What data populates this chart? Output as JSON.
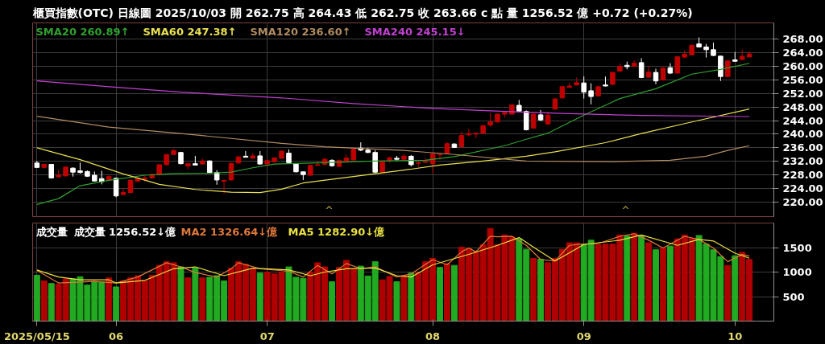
{
  "chart_data": [
    {
      "type": "candlestick",
      "title": "櫃買指數(OTC)  日線圖  2025/10/03  開 262.75  高 264.43  低 262.75  收 263.66 c 點  量 1256.52 億  +0.72 (+0.27%)",
      "categories": [
        "2025/05/15",
        null,
        null,
        null,
        null,
        null,
        null,
        null,
        null,
        null,
        null,
        "06",
        null,
        null,
        null,
        null,
        null,
        null,
        null,
        null,
        null,
        null,
        null,
        null,
        null,
        null,
        null,
        null,
        null,
        null,
        null,
        null,
        "07",
        null,
        null,
        null,
        null,
        null,
        null,
        null,
        null,
        null,
        null,
        null,
        null,
        null,
        null,
        null,
        null,
        null,
        null,
        null,
        null,
        null,
        null,
        "08",
        null,
        null,
        null,
        null,
        null,
        null,
        null,
        null,
        null,
        null,
        null,
        null,
        null,
        null,
        null,
        null,
        null,
        null,
        null,
        null,
        "09",
        null,
        null,
        null,
        null,
        null,
        null,
        null,
        null,
        null,
        null,
        null,
        null,
        null,
        null,
        null,
        null,
        null,
        null,
        null,
        null,
        "10",
        null,
        null
      ],
      "ohlc": [
        [
          231.5,
          232.1,
          230.1,
          230.2
        ],
        [
          230.2,
          231.3,
          230.0,
          231.1
        ],
        [
          231.1,
          231.2,
          226.9,
          227.1
        ],
        [
          227.4,
          229.5,
          227.3,
          227.9
        ],
        [
          227.7,
          230.5,
          227.5,
          230.3
        ],
        [
          230.0,
          230.2,
          227.5,
          228.8
        ],
        [
          229.2,
          231.6,
          228.4,
          228.7
        ],
        [
          229.0,
          229.3,
          227.4,
          227.6
        ],
        [
          227.9,
          229.0,
          226.0,
          226.2
        ],
        [
          226.9,
          229.2,
          225.2,
          226.0
        ],
        [
          226.4,
          227.9,
          226.3,
          227.5
        ],
        [
          227.0,
          227.1,
          221.4,
          221.8
        ],
        [
          222.2,
          224.0,
          222.0,
          222.8
        ],
        [
          222.8,
          226.8,
          222.6,
          226.4
        ],
        [
          226.1,
          227.2,
          226.0,
          227.0
        ],
        [
          226.7,
          227.7,
          226.1,
          227.1
        ],
        [
          227.1,
          228.5,
          227.0,
          228.1
        ],
        [
          228.0,
          231.1,
          227.8,
          231.0
        ],
        [
          231.0,
          234.1,
          230.8,
          234.0
        ],
        [
          234.0,
          235.6,
          233.8,
          235.2
        ],
        [
          234.6,
          234.8,
          231.1,
          231.3
        ],
        [
          230.6,
          231.5,
          229.6,
          231.3
        ],
        [
          231.3,
          233.6,
          230.8,
          230.9
        ],
        [
          231.2,
          232.8,
          231.0,
          232.1
        ],
        [
          232.1,
          232.3,
          228.3,
          228.5
        ],
        [
          228.7,
          229.4,
          225.1,
          226.5
        ],
        [
          226.1,
          226.5,
          222.4,
          226.4
        ],
        [
          226.5,
          231.6,
          226.3,
          231.4
        ],
        [
          231.5,
          233.6,
          231.3,
          233.3
        ],
        [
          233.5,
          235.0,
          233.1,
          233.2
        ],
        [
          232.9,
          234.4,
          232.8,
          233.6
        ],
        [
          233.6,
          235.0,
          231.0,
          231.2
        ],
        [
          231.2,
          232.5,
          230.9,
          232.2
        ],
        [
          231.9,
          233.2,
          231.7,
          233.0
        ],
        [
          232.9,
          235.2,
          232.7,
          235.0
        ],
        [
          234.4,
          235.5,
          231.4,
          231.6
        ],
        [
          231.3,
          231.5,
          228.7,
          228.9
        ],
        [
          228.9,
          229.0,
          226.5,
          228.1
        ],
        [
          227.9,
          231.0,
          227.7,
          230.8
        ],
        [
          230.8,
          232.1,
          230.7,
          231.0
        ],
        [
          231.1,
          233.0,
          230.8,
          232.6
        ],
        [
          232.3,
          232.6,
          230.4,
          230.7
        ],
        [
          230.5,
          232.5,
          230.3,
          232.3
        ],
        [
          232.0,
          234.1,
          231.8,
          233.0
        ],
        [
          232.4,
          235.7,
          232.2,
          235.6
        ],
        [
          235.9,
          237.6,
          235.0,
          235.3
        ],
        [
          235.3,
          236.0,
          234.4,
          234.6
        ],
        [
          234.6,
          235.3,
          228.5,
          228.8
        ],
        [
          228.8,
          232.2,
          228.5,
          232.0
        ],
        [
          232.3,
          233.4,
          231.6,
          233.0
        ],
        [
          232.9,
          233.6,
          232.1,
          232.6
        ],
        [
          232.6,
          234.2,
          232.4,
          233.5
        ],
        [
          233.5,
          233.8,
          230.5,
          231.0
        ],
        [
          231.4,
          231.9,
          230.3,
          231.6
        ],
        [
          231.7,
          232.9,
          231.5,
          232.0
        ],
        [
          231.3,
          234.6,
          228.3,
          234.2
        ],
        [
          233.9,
          234.3,
          232.4,
          234.1
        ],
        [
          234.3,
          237.5,
          234.1,
          237.2
        ],
        [
          237.1,
          237.3,
          236.0,
          236.1
        ],
        [
          236.3,
          240.8,
          236.1,
          239.6
        ],
        [
          239.8,
          241.5,
          239.4,
          240.2
        ],
        [
          240.0,
          240.5,
          238.8,
          240.3
        ],
        [
          240.3,
          242.8,
          240.0,
          242.5
        ],
        [
          242.7,
          246.3,
          242.2,
          243.6
        ],
        [
          243.6,
          246.1,
          243.4,
          245.9
        ],
        [
          245.9,
          246.6,
          245.0,
          246.4
        ],
        [
          245.9,
          248.9,
          245.7,
          248.6
        ],
        [
          248.5,
          250.1,
          246.6,
          246.8
        ],
        [
          246.7,
          247.0,
          241.1,
          241.3
        ],
        [
          241.8,
          246.3,
          241.6,
          245.9
        ],
        [
          245.7,
          247.1,
          243.9,
          244.2
        ],
        [
          243.0,
          246.6,
          242.8,
          245.6
        ],
        [
          247.4,
          250.7,
          247.2,
          250.4
        ],
        [
          250.7,
          254.2,
          250.5,
          254.0
        ],
        [
          253.8,
          255.1,
          253.7,
          254.2
        ],
        [
          254.5,
          256.7,
          254.3,
          255.2
        ],
        [
          255.1,
          257.0,
          250.5,
          252.4
        ],
        [
          252.8,
          255.0,
          248.8,
          251.1
        ],
        [
          251.3,
          254.3,
          251.1,
          254.0
        ],
        [
          254.5,
          257.0,
          254.1,
          254.2
        ],
        [
          254.7,
          258.4,
          254.5,
          258.2
        ],
        [
          258.6,
          260.9,
          258.5,
          260.0
        ],
        [
          260.3,
          261.4,
          259.1,
          259.9
        ],
        [
          260.0,
          261.8,
          259.9,
          260.9
        ],
        [
          261.1,
          262.4,
          256.5,
          256.7
        ],
        [
          256.8,
          260.1,
          256.6,
          258.3
        ],
        [
          258.2,
          259.3,
          254.7,
          255.7
        ],
        [
          256.0,
          259.7,
          255.8,
          259.5
        ],
        [
          259.6,
          260.9,
          257.7,
          258.0
        ],
        [
          258.0,
          263.0,
          257.8,
          262.8
        ],
        [
          262.7,
          264.7,
          262.5,
          263.6
        ],
        [
          263.4,
          266.4,
          263.2,
          266.2
        ],
        [
          266.6,
          268.5,
          265.6,
          265.7
        ],
        [
          265.7,
          266.6,
          262.6,
          264.9
        ],
        [
          264.9,
          267.0,
          263.0,
          263.2
        ],
        [
          263.0,
          263.1,
          255.7,
          257.0
        ],
        [
          257.0,
          261.8,
          256.8,
          261.6
        ],
        [
          261.9,
          264.2,
          261.4,
          261.5
        ],
        [
          262.0,
          264.9,
          261.9,
          262.94
        ],
        [
          262.75,
          264.43,
          262.75,
          263.66
        ]
      ],
      "colors": [
        "#ffffff",
        "#c00000",
        "#ffffff",
        "#c00000",
        "#c00000",
        "#ffffff",
        "#ffffff",
        "#ffffff",
        "#ffffff",
        "#ffffff",
        "#c00000",
        "#ffffff",
        "#c00000",
        "#c00000",
        "#c00000",
        "#c00000",
        "#c00000",
        "#c00000",
        "#c00000",
        "#c00000",
        "#ffffff",
        "#c00000",
        "#ffffff",
        "#c00000",
        "#ffffff",
        "#ffffff",
        "#c00000",
        "#c00000",
        "#c00000",
        "#ffffff",
        "#c00000",
        "#ffffff",
        "#c00000",
        "#c00000",
        "#c00000",
        "#ffffff",
        "#ffffff",
        "#ffffff",
        "#c00000",
        "#c00000",
        "#c00000",
        "#ffffff",
        "#c00000",
        "#c00000",
        "#c00000",
        "#ffffff",
        "#ffffff",
        "#ffffff",
        "#c00000",
        "#c00000",
        "#ffffff",
        "#c00000",
        "#ffffff",
        "#c00000",
        "#c00000",
        "#c00000",
        "#c00000",
        "#c00000",
        "#ffffff",
        "#c00000",
        "#c00000",
        "#c00000",
        "#c00000",
        "#c00000",
        "#c00000",
        "#c00000",
        "#c00000",
        "#ffffff",
        "#ffffff",
        "#c00000",
        "#ffffff",
        "#c00000",
        "#c00000",
        "#c00000",
        "#c00000",
        "#c00000",
        "#ffffff",
        "#ffffff",
        "#c00000",
        "#ffffff",
        "#c00000",
        "#c00000",
        "#ffffff",
        "#c00000",
        "#ffffff",
        "#c00000",
        "#ffffff",
        "#c00000",
        "#ffffff",
        "#c00000",
        "#c00000",
        "#c00000",
        "#ffffff",
        "#ffffff",
        "#ffffff",
        "#ffffff",
        "#c00000",
        "#ffffff",
        "#c00000",
        "#c00000"
      ],
      "series": [
        {
          "name": "SMA20 260.89↑",
          "type": "line",
          "color": "#2fa02f",
          "values": [
            219.3,
            null,
            null,
            221.0,
            null,
            null,
            224.8,
            null,
            null,
            null,
            226.4,
            null,
            null,
            null,
            null,
            227.9,
            null,
            null,
            null,
            228.4,
            null,
            null,
            null,
            null,
            228.5,
            null,
            null,
            228.8,
            null,
            null,
            230.1,
            null,
            null,
            231.2,
            null,
            null,
            null,
            null,
            null,
            null,
            231.6,
            null,
            null,
            null,
            null,
            null,
            null,
            232.1,
            null,
            null,
            null,
            null,
            null,
            null,
            232.3,
            null,
            null,
            null,
            233.4,
            null,
            null,
            null,
            null,
            null,
            null,
            236.6,
            null,
            null,
            238.5,
            null,
            null,
            240.3,
            null,
            null,
            null,
            null,
            245.6,
            null,
            null,
            null,
            null,
            250.5,
            null,
            null,
            null,
            null,
            253.4,
            null,
            null,
            null,
            null,
            257.7,
            null,
            null,
            null,
            259.1,
            null,
            null,
            null,
            260.9
          ]
        },
        {
          "name": "SMA60 247.38↑",
          "type": "line",
          "color": "#e8e050",
          "values": [
            236.0,
            null,
            null,
            null,
            null,
            null,
            232.5,
            null,
            null,
            null,
            null,
            null,
            228.3,
            null,
            null,
            null,
            null,
            225.2,
            null,
            null,
            null,
            null,
            223.7,
            null,
            null,
            null,
            null,
            222.9,
            null,
            null,
            null,
            222.8,
            null,
            null,
            223.8,
            null,
            null,
            225.6,
            null,
            null,
            null,
            null,
            null,
            null,
            227.5,
            null,
            null,
            null,
            null,
            null,
            null,
            229.4,
            null,
            null,
            null,
            null,
            230.9,
            null,
            null,
            null,
            null,
            null,
            232.1,
            null,
            null,
            null,
            null,
            null,
            233.5,
            null,
            null,
            null,
            234.8,
            null,
            null,
            null,
            null,
            null,
            null,
            237.5,
            null,
            null,
            null,
            null,
            240.2,
            null,
            null,
            null,
            null,
            null,
            null,
            243.6,
            null,
            null,
            null,
            null,
            null,
            null,
            null,
            247.4
          ]
        },
        {
          "name": "SMA120 236.60↑",
          "type": "line",
          "color": "#b08c60",
          "values": [
            245.3,
            null,
            null,
            null,
            null,
            null,
            null,
            null,
            null,
            null,
            242.1,
            null,
            null,
            null,
            null,
            null,
            null,
            null,
            null,
            null,
            240.2,
            null,
            null,
            null,
            null,
            null,
            null,
            null,
            null,
            null,
            null,
            null,
            null,
            null,
            237.3,
            null,
            null,
            null,
            null,
            null,
            236.3,
            null,
            null,
            null,
            null,
            null,
            null,
            null,
            null,
            null,
            null,
            235.2,
            null,
            null,
            null,
            null,
            null,
            null,
            234.0,
            null,
            null,
            null,
            null,
            null,
            null,
            null,
            null,
            null,
            232.1,
            null,
            null,
            null,
            232.0,
            null,
            null,
            null,
            null,
            null,
            null,
            null,
            231.9,
            null,
            null,
            null,
            null,
            null,
            null,
            null,
            232.3,
            null,
            null,
            null,
            null,
            233.5,
            null,
            null,
            235.2,
            null,
            null,
            236.6
          ]
        },
        {
          "name": "SMA240 245.15↓",
          "type": "line",
          "color": "#c040d0",
          "values": [
            255.7,
            null,
            null,
            null,
            null,
            null,
            null,
            null,
            null,
            null,
            254.0,
            null,
            null,
            null,
            null,
            null,
            null,
            null,
            null,
            null,
            252.4,
            null,
            null,
            null,
            null,
            null,
            null,
            null,
            null,
            null,
            null,
            null,
            null,
            null,
            250.7,
            null,
            null,
            null,
            null,
            null,
            null,
            null,
            null,
            null,
            249.0,
            null,
            null,
            null,
            null,
            null,
            null,
            null,
            null,
            null,
            null,
            247.6,
            null,
            null,
            null,
            null,
            null,
            null,
            null,
            null,
            null,
            246.7,
            null,
            null,
            null,
            null,
            null,
            null,
            null,
            246.1,
            null,
            null,
            null,
            null,
            null,
            null,
            null,
            null,
            null,
            null,
            245.5,
            null,
            null,
            null,
            null,
            null,
            null,
            null,
            null,
            null,
            null,
            null,
            null,
            null,
            null,
            245.2
          ]
        }
      ],
      "annotations": [
        "^",
        "^"
      ],
      "ylim": [
        215.7,
        272.8
      ],
      "yticks": [
        {
          "value": 220,
          "label": "220.00"
        },
        {
          "value": 224,
          "label": "224.00"
        },
        {
          "value": 228,
          "label": "228.00"
        },
        {
          "value": 232,
          "label": "232.00"
        },
        {
          "value": 236,
          "label": "236.00"
        },
        {
          "value": 240,
          "label": "240.00"
        },
        {
          "value": 244,
          "label": "244.00"
        },
        {
          "value": 248,
          "label": "248.00"
        },
        {
          "value": 252,
          "label": "252.00"
        },
        {
          "value": 256,
          "label": "256.00"
        },
        {
          "value": 260,
          "label": "260.00"
        },
        {
          "value": 264,
          "label": "264.00"
        },
        {
          "value": 268,
          "label": "268.00"
        }
      ],
      "tick_labels": "y",
      "grid": true,
      "legend": "top left"
    },
    {
      "type": "bar",
      "ylabel": "成交量",
      "categories": [
        "2025/05/15",
        null,
        null,
        null,
        null,
        null,
        null,
        null,
        null,
        null,
        null,
        "06",
        null,
        null,
        null,
        null,
        null,
        null,
        null,
        null,
        null,
        null,
        null,
        null,
        null,
        null,
        null,
        null,
        null,
        null,
        null,
        null,
        "07",
        null,
        null,
        null,
        null,
        null,
        null,
        null,
        null,
        null,
        null,
        null,
        null,
        null,
        null,
        null,
        null,
        null,
        null,
        null,
        null,
        null,
        null,
        "08",
        null,
        null,
        null,
        null,
        null,
        null,
        null,
        null,
        null,
        null,
        null,
        null,
        null,
        null,
        null,
        null,
        null,
        null,
        null,
        null,
        "09",
        null,
        null,
        null,
        null,
        null,
        null,
        null,
        null,
        null,
        null,
        null,
        null,
        null,
        null,
        null,
        null,
        null,
        null,
        null,
        null,
        "10",
        null,
        null
      ],
      "series": [
        {
          "name": "成交量 1256.52↓億",
          "type": "bar",
          "values": [
            936,
            820,
            767,
            751,
            862,
            862,
            905,
            735,
            804,
            799,
            883,
            698,
            820,
            883,
            926,
            831,
            936,
            1137,
            1211,
            1190,
            1106,
            883,
            1084,
            883,
            894,
            926,
            820,
            1079,
            1211,
            1159,
            1069,
            979,
            1000,
            963,
            1000,
            1106,
            894,
            873,
            1000,
            1190,
            1106,
            804,
            1095,
            1238,
            1069,
            1121,
            920,
            1211,
            841,
            910,
            804,
            926,
            979,
            989,
            1211,
            1280,
            1095,
            1174,
            1137,
            1508,
            1481,
            1423,
            1561,
            1889,
            1561,
            1756,
            1719,
            1677,
            1465,
            1280,
            1264,
            1190,
            1280,
            1465,
            1598,
            1598,
            1571,
            1650,
            1561,
            1571,
            1571,
            1756,
            1740,
            1793,
            1740,
            1598,
            1455,
            1492,
            1529,
            1677,
            1756,
            1688,
            1746,
            1571,
            1455,
            1317,
            1137,
            1333,
            1402,
            1256.52
          ],
          "colors": [
            "#22aa22",
            "#b00000",
            "#22aa22",
            "#b00000",
            "#b00000",
            "#22aa22",
            "#22aa22",
            "#22aa22",
            "#22aa22",
            "#22aa22",
            "#b00000",
            "#22aa22",
            "#b00000",
            "#b00000",
            "#b00000",
            "#b00000",
            "#b00000",
            "#b00000",
            "#b00000",
            "#b00000",
            "#22aa22",
            "#b00000",
            "#22aa22",
            "#b00000",
            "#22aa22",
            "#22aa22",
            "#22aa22",
            "#b00000",
            "#b00000",
            "#b00000",
            "#b00000",
            "#22aa22",
            "#b00000",
            "#b00000",
            "#b00000",
            "#22aa22",
            "#22aa22",
            "#22aa22",
            "#b00000",
            "#b00000",
            "#b00000",
            "#22aa22",
            "#b00000",
            "#b00000",
            "#b00000",
            "#22aa22",
            "#22aa22",
            "#22aa22",
            "#b00000",
            "#b00000",
            "#22aa22",
            "#b00000",
            "#22aa22",
            "#b00000",
            "#b00000",
            "#b00000",
            "#22aa22",
            "#b00000",
            "#22aa22",
            "#b00000",
            "#b00000",
            "#b00000",
            "#b00000",
            "#b00000",
            "#b00000",
            "#b00000",
            "#b00000",
            "#22aa22",
            "#22aa22",
            "#b00000",
            "#22aa22",
            "#b00000",
            "#b00000",
            "#b00000",
            "#b00000",
            "#b00000",
            "#22aa22",
            "#22aa22",
            "#b00000",
            "#b00000",
            "#b00000",
            "#b00000",
            "#22aa22",
            "#b00000",
            "#22aa22",
            "#b00000",
            "#22aa22",
            "#b00000",
            "#22aa22",
            "#b00000",
            "#b00000",
            "#b00000",
            "#22aa22",
            "#22aa22",
            "#22aa22",
            "#22aa22",
            "#b00000",
            "#22aa22",
            "#b00000",
            "#b00000"
          ]
        },
        {
          "name": "MA2 1326.64↓億",
          "type": "line",
          "color": "#e07838",
          "values": [
            1032,
            null,
            null,
            778,
            null,
            null,
            null,
            null,
            809,
            null,
            null,
            778,
            null,
            null,
            899,
            null,
            null,
            null,
            1190,
            null,
            1106,
            null,
            989,
            null,
            null,
            899,
            null,
            1069,
            1190,
            null,
            null,
            1069,
            null,
            null,
            null,
            1016,
            null,
            899,
            null,
            1137,
            null,
            963,
            null,
            1174,
            null,
            1069,
            null,
            1106,
            null,
            null,
            899,
            null,
            963,
            null,
            null,
            1254,
            null,
            1148,
            null,
            1412,
            1492,
            1412,
            null,
            1730,
            1719,
            null,
            1730,
            null,
            1545,
            null,
            1254,
            null,
            1227,
            null,
            1545,
            null,
            1571,
            null,
            1582,
            null,
            null,
            1730,
            null,
            1783,
            null,
            1650,
            null,
            1492,
            null,
            null,
            1730,
            null,
            1666,
            null,
            1492,
            null,
            1211,
            null,
            1360,
            1327
          ]
        },
        {
          "name": "MA5 1282.90↓億",
          "type": "line",
          "color": "#e8e040",
          "values": [
            1042,
            null,
            null,
            899,
            null,
            null,
            841,
            null,
            null,
            null,
            841,
            778,
            null,
            null,
            null,
            831,
            null,
            null,
            null,
            1069,
            null,
            null,
            1106,
            null,
            null,
            null,
            926,
            null,
            null,
            null,
            1079,
            null,
            null,
            null,
            null,
            1042,
            null,
            null,
            926,
            null,
            1000,
            null,
            null,
            1069,
            null,
            null,
            null,
            1084,
            null,
            null,
            926,
            null,
            899,
            null,
            null,
            1148,
            null,
            null,
            null,
            null,
            1360,
            null,
            null,
            null,
            1545,
            null,
            null,
            1703,
            null,
            1508,
            null,
            null,
            1227,
            null,
            null,
            null,
            1561,
            null,
            null,
            null,
            null,
            1650,
            null,
            null,
            1756,
            null,
            null,
            null,
            null,
            1545,
            null,
            null,
            1666,
            null,
            1634,
            null,
            null,
            1386,
            null,
            1283
          ]
        }
      ],
      "ylim": [
        0,
        2000
      ],
      "yticks": [
        500,
        1000,
        1500
      ],
      "grid": true,
      "legend": "top left"
    }
  ]
}
